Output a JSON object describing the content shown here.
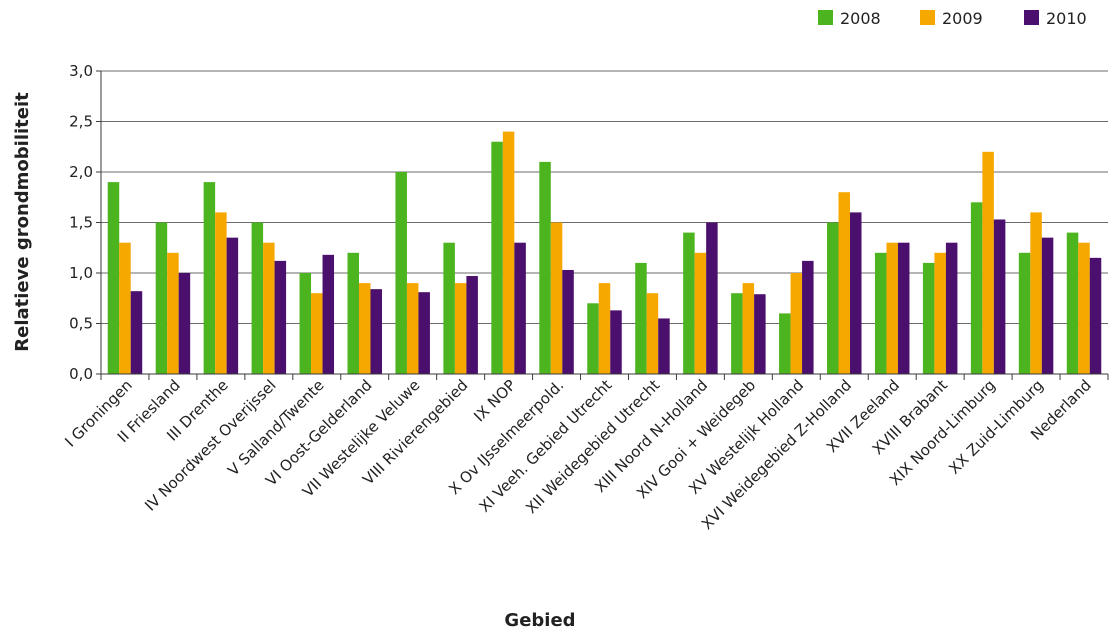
{
  "chart_data": {
    "type": "bar",
    "xlabel": "Gebied",
    "ylabel": "Relatieve grondmobiliteit",
    "ylim": [
      0,
      3
    ],
    "y_ticks": [
      "0,0",
      "0,5",
      "1,0",
      "1,5",
      "2,0",
      "2,5",
      "3,0"
    ],
    "grid": true,
    "legend_position": "top-right",
    "categories": [
      "I Groningen",
      "II Friesland",
      "III Drenthe",
      "IV Noordwest Overijssel",
      "V Salland/Twente",
      "VI Oost-Gelderland",
      "VII Westelijke Veluwe",
      "VIII Rivierengebied",
      "IX NOP",
      "X Ov IJsselmeerpold.",
      "XI Veeh. Gebied Utrecht",
      "XII Weidegebied Utrecht",
      "XIII Noord N-Holland",
      "XIV Gooi + Weidegeb",
      "XV Westelijk Holland",
      "XVI Weidegebied Z-Holland",
      "XVII Zeeland",
      "XVIII Brabant",
      "XIX Noord-Limburg",
      "XX Zuid-Limburg",
      "Nederland"
    ],
    "series": [
      {
        "name": "2008",
        "color": "#4cb41e",
        "values": [
          1.9,
          1.5,
          1.9,
          1.5,
          1.0,
          1.2,
          2.0,
          1.3,
          2.3,
          2.1,
          0.7,
          1.1,
          1.4,
          0.8,
          0.6,
          1.5,
          1.2,
          1.1,
          1.7,
          1.2,
          1.4
        ]
      },
      {
        "name": "2009",
        "color": "#f7a800",
        "values": [
          1.3,
          1.2,
          1.6,
          1.3,
          0.8,
          0.9,
          0.9,
          0.9,
          2.4,
          1.5,
          0.9,
          0.8,
          1.2,
          0.9,
          1.0,
          1.8,
          1.3,
          1.2,
          2.2,
          1.6,
          1.3
        ]
      },
      {
        "name": "2010",
        "color": "#4b0f6e",
        "values": [
          0.82,
          1.0,
          1.35,
          1.12,
          1.18,
          0.84,
          0.81,
          0.97,
          1.3,
          1.03,
          0.63,
          0.55,
          1.5,
          0.79,
          1.12,
          1.6,
          1.3,
          1.3,
          1.53,
          1.35,
          1.15
        ]
      }
    ]
  }
}
